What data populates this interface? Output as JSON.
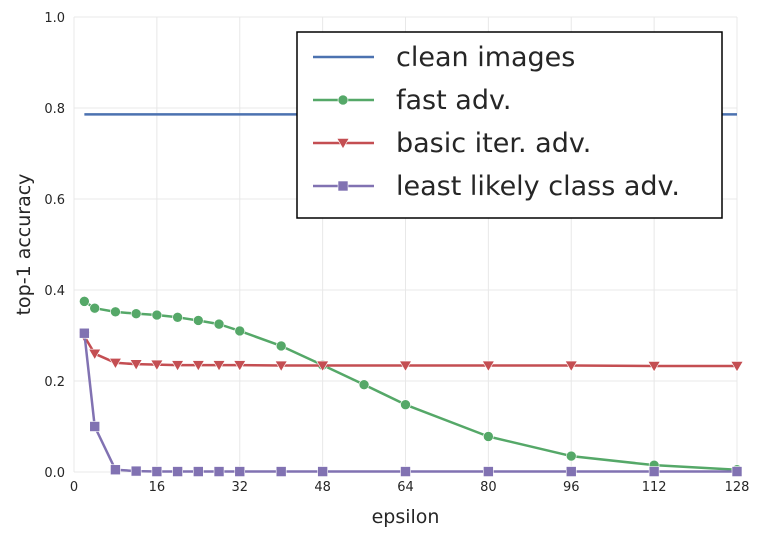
{
  "chart_data": {
    "type": "line",
    "xlabel": "epsilon",
    "ylabel": "top-1 accuracy",
    "xlim": [
      0,
      128
    ],
    "ylim": [
      0.0,
      1.0
    ],
    "xticks": [
      0,
      16,
      32,
      48,
      64,
      80,
      96,
      112,
      128
    ],
    "yticks": [
      0.0,
      0.2,
      0.4,
      0.6,
      0.8,
      1.0
    ],
    "xtick_labels": [
      "0",
      "16",
      "32",
      "48",
      "64",
      "80",
      "96",
      "112",
      "128"
    ],
    "ytick_labels": [
      "0.0",
      "0.2",
      "0.4",
      "0.6",
      "0.8",
      "1.0"
    ],
    "grid": true,
    "legend_position": "top-right",
    "series": [
      {
        "name": "clean images",
        "color": "#4c72b0",
        "marker": "none",
        "x": [
          2,
          128
        ],
        "y": [
          0.786,
          0.786
        ]
      },
      {
        "name": "fast adv.",
        "color": "#55a868",
        "marker": "circle",
        "x": [
          2,
          4,
          8,
          12,
          16,
          20,
          24,
          28,
          32,
          40,
          48,
          56,
          64,
          80,
          96,
          112,
          128
        ],
        "y": [
          0.375,
          0.36,
          0.352,
          0.348,
          0.345,
          0.34,
          0.333,
          0.325,
          0.31,
          0.277,
          0.235,
          0.192,
          0.148,
          0.078,
          0.035,
          0.015,
          0.005
        ]
      },
      {
        "name": "basic iter. adv.",
        "color": "#c44e52",
        "marker": "triangle-down",
        "x": [
          2,
          4,
          8,
          12,
          16,
          20,
          24,
          28,
          32,
          40,
          48,
          64,
          80,
          96,
          112,
          128
        ],
        "y": [
          0.298,
          0.26,
          0.24,
          0.237,
          0.236,
          0.235,
          0.235,
          0.235,
          0.235,
          0.234,
          0.234,
          0.234,
          0.234,
          0.234,
          0.233,
          0.233
        ]
      },
      {
        "name": "least likely class adv.",
        "color": "#8172b2",
        "marker": "square",
        "x": [
          2,
          4,
          8,
          12,
          16,
          20,
          24,
          28,
          32,
          40,
          48,
          64,
          80,
          96,
          112,
          128
        ],
        "y": [
          0.305,
          0.1,
          0.005,
          0.002,
          0.001,
          0.001,
          0.001,
          0.001,
          0.001,
          0.001,
          0.001,
          0.001,
          0.001,
          0.001,
          0.001,
          0.001
        ]
      }
    ]
  }
}
